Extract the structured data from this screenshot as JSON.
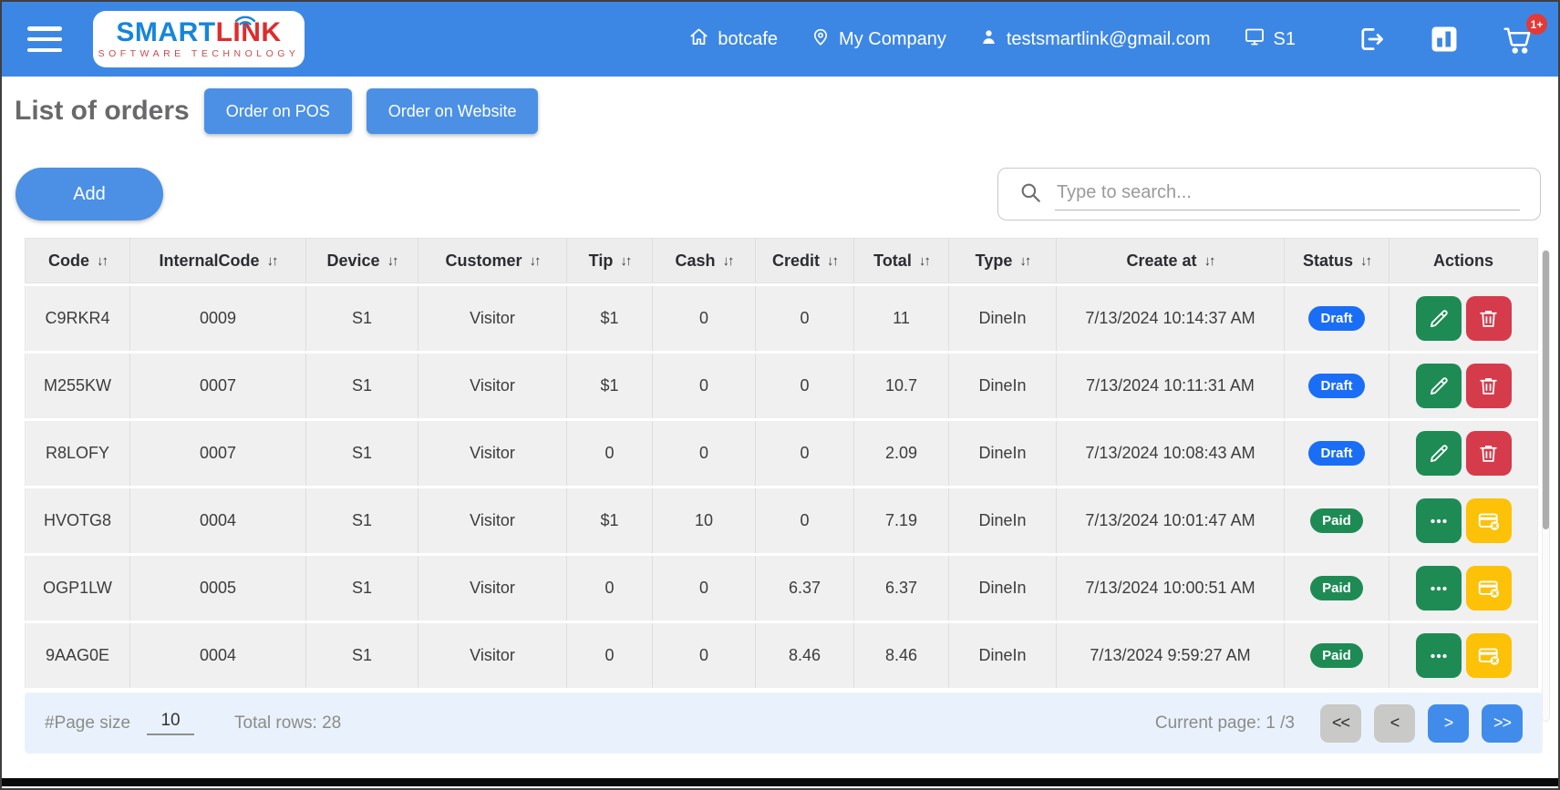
{
  "header": {
    "brand": {
      "name_primary": "SMART",
      "name_secondary": "LINK",
      "tagline": "SOFTWARE TECHNOLOGY"
    },
    "nav": [
      {
        "icon": "home-icon",
        "label": "botcafe"
      },
      {
        "icon": "location-icon",
        "label": "My Company"
      },
      {
        "icon": "user-icon",
        "label": "testsmartlink@gmail.com"
      },
      {
        "icon": "monitor-icon",
        "label": "S1"
      }
    ],
    "cart_badge": "1+"
  },
  "page": {
    "title": "List of orders",
    "pos_button": "Order on POS",
    "website_button": "Order on Website",
    "add_button": "Add",
    "search_placeholder": "Type to search..."
  },
  "table": {
    "sort_glyph": "↓↑",
    "columns": [
      {
        "label": "Code",
        "sortable": true
      },
      {
        "label": "InternalCode",
        "sortable": true
      },
      {
        "label": "Device",
        "sortable": true
      },
      {
        "label": "Customer",
        "sortable": true
      },
      {
        "label": "Tip",
        "sortable": true
      },
      {
        "label": "Cash",
        "sortable": true
      },
      {
        "label": "Credit",
        "sortable": true
      },
      {
        "label": "Total",
        "sortable": true
      },
      {
        "label": "Type",
        "sortable": true
      },
      {
        "label": "Create at",
        "sortable": true
      },
      {
        "label": "Status",
        "sortable": true
      },
      {
        "label": "Actions",
        "sortable": false
      }
    ],
    "rows": [
      {
        "code": "C9RKR4",
        "internal_code": "0009",
        "device": "S1",
        "customer": "Visitor",
        "tip": "$1",
        "cash": "0",
        "credit": "0",
        "total": "11",
        "type": "DineIn",
        "created_at": "7/13/2024 10:14:37 AM",
        "status": "Draft",
        "status_type": "draft",
        "actions": [
          "edit",
          "delete"
        ]
      },
      {
        "code": "M255KW",
        "internal_code": "0007",
        "device": "S1",
        "customer": "Visitor",
        "tip": "$1",
        "cash": "0",
        "credit": "0",
        "total": "10.7",
        "type": "DineIn",
        "created_at": "7/13/2024 10:11:31 AM",
        "status": "Draft",
        "status_type": "draft",
        "actions": [
          "edit",
          "delete"
        ]
      },
      {
        "code": "R8LOFY",
        "internal_code": "0007",
        "device": "S1",
        "customer": "Visitor",
        "tip": "0",
        "cash": "0",
        "credit": "0",
        "total": "2.09",
        "type": "DineIn",
        "created_at": "7/13/2024 10:08:43 AM",
        "status": "Draft",
        "status_type": "draft",
        "actions": [
          "edit",
          "delete"
        ]
      },
      {
        "code": "HVOTG8",
        "internal_code": "0004",
        "device": "S1",
        "customer": "Visitor",
        "tip": "$1",
        "cash": "10",
        "credit": "0",
        "total": "7.19",
        "type": "DineIn",
        "created_at": "7/13/2024 10:01:47 AM",
        "status": "Paid",
        "status_type": "paid",
        "actions": [
          "more",
          "refund"
        ]
      },
      {
        "code": "OGP1LW",
        "internal_code": "0005",
        "device": "S1",
        "customer": "Visitor",
        "tip": "0",
        "cash": "0",
        "credit": "6.37",
        "total": "6.37",
        "type": "DineIn",
        "created_at": "7/13/2024 10:00:51 AM",
        "status": "Paid",
        "status_type": "paid",
        "actions": [
          "more",
          "refund"
        ]
      },
      {
        "code": "9AAG0E",
        "internal_code": "0004",
        "device": "S1",
        "customer": "Visitor",
        "tip": "0",
        "cash": "0",
        "credit": "8.46",
        "total": "8.46",
        "type": "DineIn",
        "created_at": "7/13/2024 9:59:27 AM",
        "status": "Paid",
        "status_type": "paid",
        "actions": [
          "more",
          "refund"
        ]
      }
    ]
  },
  "footer": {
    "page_size_label": "#Page size",
    "page_size_value": "10",
    "total_rows_label": "Total rows: 28",
    "current_page_label": "Current page: 1 /3",
    "pagination": {
      "first": "<<",
      "prev": "<",
      "next": ">",
      "last": ">>"
    }
  },
  "colors": {
    "header_blue": "#3d87e4",
    "button_blue": "#4b90e4",
    "badge_draft_blue": "#1a6ef5",
    "badge_paid_green": "#1e8b55",
    "action_green": "#1e8b55",
    "action_red": "#d63b4b",
    "action_yellow": "#fdc107",
    "footer_bg": "#e9f2fc",
    "brand_blue": "#1686d9",
    "brand_red": "#e02b2b",
    "cart_badge_red": "#e53935"
  }
}
